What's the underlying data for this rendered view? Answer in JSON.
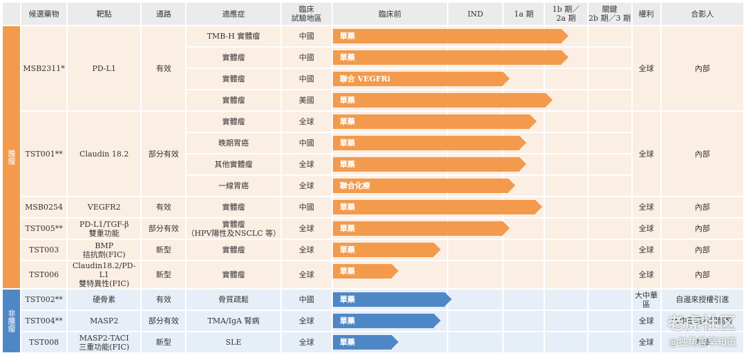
{
  "headers": [
    "候選藥物",
    "靶點",
    "通路",
    "適應症",
    "臨床\n試驗地區",
    "臨床前",
    "IND",
    "1a 期",
    "1b 期／\n2a 期",
    "關鍵\n2b 期／3 期",
    "權利",
    "合影人"
  ],
  "categories": {
    "oncology": "腫瘤",
    "non_oncology": "非腫瘤"
  },
  "groups": [
    {
      "candidate": "MSB2311*",
      "target": "PD-L1",
      "pathway": "有效",
      "rights": "全球",
      "partner": "內部",
      "rows": [
        {
          "indication": "TMB-H 實體瘤",
          "region": "中國",
          "bar_label": "單藥",
          "progress": 0.43
        },
        {
          "indication": "實體瘤",
          "region": "中國",
          "bar_label": "單藥",
          "progress": 0.43
        },
        {
          "indication": "實體瘤",
          "region": "中國",
          "bar_label": "聯合 VEGFRi",
          "progress": 0.32
        },
        {
          "indication": "實體瘤",
          "region": "美國",
          "bar_label": "單藥",
          "progress": 0.4
        }
      ]
    },
    {
      "candidate": "TST001**",
      "target": "Claudin 18.2",
      "pathway": "部分有效",
      "rights": "全球",
      "partner": "內部",
      "rows": [
        {
          "indication": "實體瘤",
          "region": "全球",
          "bar_label": "單藥",
          "progress": 0.37
        },
        {
          "indication": "晚期胃癌",
          "region": "中國",
          "bar_label": "單藥",
          "progress": 0.35
        },
        {
          "indication": "其他實體瘤",
          "region": "全球",
          "bar_label": "單藥",
          "progress": 0.35
        },
        {
          "indication": "一線胃癌",
          "region": "全球",
          "bar_label": "聯合化療",
          "progress": 0.33
        }
      ]
    },
    {
      "candidate": "MSB0254",
      "target": "VEGFR2",
      "pathway": "有效",
      "rights": "全球",
      "partner": "內部",
      "rows": [
        {
          "indication": "實體瘤",
          "region": "中國",
          "bar_label": "單藥",
          "progress": 0.38
        }
      ]
    },
    {
      "candidate": "TST005**",
      "target": "PD-L1/TGF-β\n雙重功能",
      "pathway": "部分有效",
      "rights": "全球",
      "partner": "內部",
      "rows": [
        {
          "indication": "實體瘤\n（HPV陽性及NSCLC 等）",
          "region": "全球",
          "bar_label": "單藥",
          "progress": 0.32
        }
      ]
    },
    {
      "candidate": "TST003",
      "target": "BMP\n拮抗劑(FIC)",
      "pathway": "新型",
      "rights": "全球",
      "partner": "內部",
      "rows": [
        {
          "indication": "實體瘤",
          "region": "全球",
          "bar_label": "單藥",
          "progress": 0.19
        }
      ]
    },
    {
      "candidate": "TST006",
      "target": "Claudin18.2/PD-L1\n雙特異性(FIC)",
      "pathway": "新型",
      "rights": "全球",
      "partner": "內部",
      "rows": [
        {
          "indication": "實體瘤",
          "region": "全球",
          "bar_label": "單藥",
          "progress": 0.11
        }
      ]
    }
  ],
  "non_oncology_groups": [
    {
      "candidate": "TST002**",
      "target": "硬骨素",
      "pathway": "有效",
      "indication": "骨質疏鬆",
      "region": "中國",
      "bar_label": "單藥",
      "progress": 0.21,
      "rights": "大中華區",
      "partner": "自邊來授權引進"
    },
    {
      "candidate": "TST004**",
      "target": "MASP2",
      "pathway": "部分有效",
      "indication": "TMA/IgA 腎病",
      "region": "全球",
      "bar_label": "單藥",
      "progress": 0.19,
      "rights": "全球",
      "partner": "大中華區共同開發"
    },
    {
      "candidate": "TST008",
      "target": "MASP2-TACI\n三重功能(FIC)",
      "pathway": "新型",
      "indication": "SLE",
      "region": "全球",
      "bar_label": "單藥",
      "progress": 0.11,
      "rights": "全球",
      "partner": "內部"
    }
  ],
  "watermark": {
    "line1": "老虎社区",
    "line2": "@独角兽早知道"
  }
}
